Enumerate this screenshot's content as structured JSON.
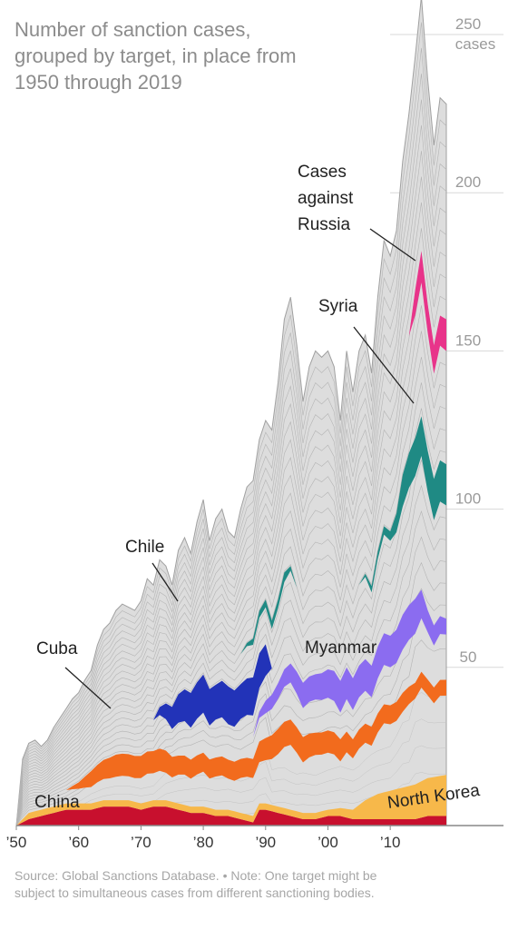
{
  "title": "Number of sanction cases, grouped by target, in place from 1950 through 2019",
  "source": "Source: Global Sanctions Database. • Note: One target might be subject to simultaneous cases from different sanctioning bodies.",
  "chart_data": {
    "type": "area",
    "stacked": true,
    "title": "Number of sanction cases, grouped by target, in place from 1950 through 2019",
    "xlabel": "",
    "ylabel": "cases",
    "xlim": [
      1950,
      2019
    ],
    "ylim": [
      0,
      250
    ],
    "y_ticks": [
      {
        "value": 50,
        "label": "50"
      },
      {
        "value": 100,
        "label": "100"
      },
      {
        "value": 150,
        "label": "150"
      },
      {
        "value": 200,
        "label": "200"
      },
      {
        "value": 250,
        "label": "250"
      }
    ],
    "y_unit_label": "cases",
    "x_ticks": [
      {
        "value": 1950,
        "label": "’50"
      },
      {
        "value": 1960,
        "label": "’60"
      },
      {
        "value": 1970,
        "label": "’70"
      },
      {
        "value": 1980,
        "label": "’80"
      },
      {
        "value": 1990,
        "label": "’90"
      },
      {
        "value": 2000,
        "label": "’00"
      },
      {
        "value": 2010,
        "label": "’10"
      }
    ],
    "grid": false,
    "colors": {
      "china": "#c8102e",
      "north_korea": "#f7b84a",
      "cuba": "#f26b1d",
      "myanmar": "#8b6cf0",
      "chile": "#2233b8",
      "syria": "#1f8a84",
      "russia": "#e8348a",
      "other": "#dddddd",
      "other_stroke": "#a0a0a0"
    },
    "totals": [
      {
        "x": 1950,
        "y": 0
      },
      {
        "x": 1951,
        "y": 21
      },
      {
        "x": 1952,
        "y": 26
      },
      {
        "x": 1953,
        "y": 27
      },
      {
        "x": 1954,
        "y": 25
      },
      {
        "x": 1955,
        "y": 27
      },
      {
        "x": 1956,
        "y": 31
      },
      {
        "x": 1957,
        "y": 34
      },
      {
        "x": 1958,
        "y": 37
      },
      {
        "x": 1959,
        "y": 40
      },
      {
        "x": 1960,
        "y": 42
      },
      {
        "x": 1961,
        "y": 46
      },
      {
        "x": 1962,
        "y": 49
      },
      {
        "x": 1963,
        "y": 57
      },
      {
        "x": 1964,
        "y": 62
      },
      {
        "x": 1965,
        "y": 64
      },
      {
        "x": 1966,
        "y": 68
      },
      {
        "x": 1967,
        "y": 70
      },
      {
        "x": 1968,
        "y": 69
      },
      {
        "x": 1969,
        "y": 68
      },
      {
        "x": 1970,
        "y": 71
      },
      {
        "x": 1971,
        "y": 78
      },
      {
        "x": 1972,
        "y": 76
      },
      {
        "x": 1973,
        "y": 84
      },
      {
        "x": 1974,
        "y": 82
      },
      {
        "x": 1975,
        "y": 76
      },
      {
        "x": 1976,
        "y": 87
      },
      {
        "x": 1977,
        "y": 91
      },
      {
        "x": 1978,
        "y": 86
      },
      {
        "x": 1979,
        "y": 96
      },
      {
        "x": 1980,
        "y": 103
      },
      {
        "x": 1981,
        "y": 90
      },
      {
        "x": 1982,
        "y": 97
      },
      {
        "x": 1983,
        "y": 100
      },
      {
        "x": 1984,
        "y": 93
      },
      {
        "x": 1985,
        "y": 91
      },
      {
        "x": 1986,
        "y": 100
      },
      {
        "x": 1987,
        "y": 107
      },
      {
        "x": 1988,
        "y": 109
      },
      {
        "x": 1989,
        "y": 122
      },
      {
        "x": 1990,
        "y": 128
      },
      {
        "x": 1991,
        "y": 125
      },
      {
        "x": 1992,
        "y": 140
      },
      {
        "x": 1993,
        "y": 160
      },
      {
        "x": 1994,
        "y": 167
      },
      {
        "x": 1995,
        "y": 152
      },
      {
        "x": 1996,
        "y": 134
      },
      {
        "x": 1997,
        "y": 145
      },
      {
        "x": 1998,
        "y": 150
      },
      {
        "x": 1999,
        "y": 148
      },
      {
        "x": 2000,
        "y": 150
      },
      {
        "x": 2001,
        "y": 145
      },
      {
        "x": 2002,
        "y": 128
      },
      {
        "x": 2003,
        "y": 150
      },
      {
        "x": 2004,
        "y": 137
      },
      {
        "x": 2005,
        "y": 150
      },
      {
        "x": 2006,
        "y": 155
      },
      {
        "x": 2007,
        "y": 143
      },
      {
        "x": 2008,
        "y": 167
      },
      {
        "x": 2009,
        "y": 185
      },
      {
        "x": 2010,
        "y": 180
      },
      {
        "x": 2011,
        "y": 188
      },
      {
        "x": 2012,
        "y": 210
      },
      {
        "x": 2013,
        "y": 225
      },
      {
        "x": 2014,
        "y": 243
      },
      {
        "x": 2015,
        "y": 262
      },
      {
        "x": 2016,
        "y": 236
      },
      {
        "x": 2017,
        "y": 215
      },
      {
        "x": 2018,
        "y": 230
      },
      {
        "x": 2019,
        "y": 228
      }
    ],
    "series": [
      {
        "name": "China",
        "key": "china",
        "values": [
          {
            "x": 1950,
            "y": 0
          },
          {
            "x": 1952,
            "y": 2
          },
          {
            "x": 1954,
            "y": 3
          },
          {
            "x": 1956,
            "y": 4
          },
          {
            "x": 1958,
            "y": 5
          },
          {
            "x": 1960,
            "y": 5
          },
          {
            "x": 1962,
            "y": 5
          },
          {
            "x": 1964,
            "y": 6
          },
          {
            "x": 1966,
            "y": 6
          },
          {
            "x": 1968,
            "y": 6
          },
          {
            "x": 1970,
            "y": 5
          },
          {
            "x": 1972,
            "y": 6
          },
          {
            "x": 1974,
            "y": 6
          },
          {
            "x": 1976,
            "y": 5
          },
          {
            "x": 1978,
            "y": 4
          },
          {
            "x": 1980,
            "y": 4
          },
          {
            "x": 1982,
            "y": 3
          },
          {
            "x": 1984,
            "y": 3
          },
          {
            "x": 1986,
            "y": 2
          },
          {
            "x": 1988,
            "y": 1
          },
          {
            "x": 1989,
            "y": 5
          },
          {
            "x": 1990,
            "y": 5
          },
          {
            "x": 1992,
            "y": 4
          },
          {
            "x": 1994,
            "y": 3
          },
          {
            "x": 1996,
            "y": 2
          },
          {
            "x": 1998,
            "y": 2
          },
          {
            "x": 2000,
            "y": 3
          },
          {
            "x": 2002,
            "y": 3
          },
          {
            "x": 2004,
            "y": 2
          },
          {
            "x": 2006,
            "y": 2
          },
          {
            "x": 2008,
            "y": 2
          },
          {
            "x": 2010,
            "y": 2
          },
          {
            "x": 2012,
            "y": 2
          },
          {
            "x": 2014,
            "y": 2
          },
          {
            "x": 2016,
            "y": 3
          },
          {
            "x": 2019,
            "y": 3
          }
        ]
      },
      {
        "name": "North Korea",
        "key": "north_korea",
        "values": [
          {
            "x": 1950,
            "y": 0
          },
          {
            "x": 1952,
            "y": 2
          },
          {
            "x": 1956,
            "y": 2
          },
          {
            "x": 1960,
            "y": 2
          },
          {
            "x": 1965,
            "y": 2
          },
          {
            "x": 1970,
            "y": 2
          },
          {
            "x": 1975,
            "y": 2
          },
          {
            "x": 1980,
            "y": 2
          },
          {
            "x": 1985,
            "y": 2
          },
          {
            "x": 1990,
            "y": 2
          },
          {
            "x": 1995,
            "y": 2
          },
          {
            "x": 2000,
            "y": 2
          },
          {
            "x": 2004,
            "y": 3
          },
          {
            "x": 2006,
            "y": 6
          },
          {
            "x": 2008,
            "y": 8
          },
          {
            "x": 2010,
            "y": 9
          },
          {
            "x": 2012,
            "y": 10
          },
          {
            "x": 2014,
            "y": 11
          },
          {
            "x": 2016,
            "y": 12
          },
          {
            "x": 2019,
            "y": 13
          }
        ]
      },
      {
        "name": "Cuba",
        "key": "cuba",
        "values": [
          {
            "x": 1950,
            "y": 0
          },
          {
            "x": 1958,
            "y": 0
          },
          {
            "x": 1960,
            "y": 2
          },
          {
            "x": 1962,
            "y": 5
          },
          {
            "x": 1964,
            "y": 6
          },
          {
            "x": 1966,
            "y": 7
          },
          {
            "x": 1968,
            "y": 7
          },
          {
            "x": 1970,
            "y": 7
          },
          {
            "x": 1972,
            "y": 7
          },
          {
            "x": 1974,
            "y": 7
          },
          {
            "x": 1976,
            "y": 6
          },
          {
            "x": 1978,
            "y": 6
          },
          {
            "x": 1980,
            "y": 6
          },
          {
            "x": 1982,
            "y": 6
          },
          {
            "x": 1984,
            "y": 6
          },
          {
            "x": 1986,
            "y": 6
          },
          {
            "x": 1988,
            "y": 6
          },
          {
            "x": 1990,
            "y": 7
          },
          {
            "x": 1992,
            "y": 8
          },
          {
            "x": 1994,
            "y": 8
          },
          {
            "x": 1996,
            "y": 8
          },
          {
            "x": 1998,
            "y": 7
          },
          {
            "x": 2000,
            "y": 7
          },
          {
            "x": 2002,
            "y": 7
          },
          {
            "x": 2004,
            "y": 6
          },
          {
            "x": 2006,
            "y": 6
          },
          {
            "x": 2008,
            "y": 6
          },
          {
            "x": 2010,
            "y": 6
          },
          {
            "x": 2012,
            "y": 6
          },
          {
            "x": 2014,
            "y": 5
          },
          {
            "x": 2016,
            "y": 5
          },
          {
            "x": 2019,
            "y": 5
          }
        ]
      },
      {
        "name": "Myanmar",
        "key": "myanmar",
        "values": [
          {
            "x": 1950,
            "y": 0
          },
          {
            "x": 1988,
            "y": 0
          },
          {
            "x": 1990,
            "y": 4
          },
          {
            "x": 1992,
            "y": 5
          },
          {
            "x": 1994,
            "y": 6
          },
          {
            "x": 1996,
            "y": 8
          },
          {
            "x": 1998,
            "y": 8
          },
          {
            "x": 2000,
            "y": 9
          },
          {
            "x": 2002,
            "y": 10
          },
          {
            "x": 2004,
            "y": 10
          },
          {
            "x": 2006,
            "y": 10
          },
          {
            "x": 2008,
            "y": 10
          },
          {
            "x": 2010,
            "y": 10
          },
          {
            "x": 2012,
            "y": 11
          },
          {
            "x": 2014,
            "y": 11
          },
          {
            "x": 2016,
            "y": 7
          },
          {
            "x": 2019,
            "y": 5
          }
        ]
      },
      {
        "name": "Chile",
        "key": "chile",
        "values": [
          {
            "x": 1950,
            "y": 0
          },
          {
            "x": 1972,
            "y": 0
          },
          {
            "x": 1974,
            "y": 5
          },
          {
            "x": 1976,
            "y": 9
          },
          {
            "x": 1978,
            "y": 11
          },
          {
            "x": 1980,
            "y": 12
          },
          {
            "x": 1982,
            "y": 11
          },
          {
            "x": 1984,
            "y": 12
          },
          {
            "x": 1986,
            "y": 11
          },
          {
            "x": 1988,
            "y": 12
          },
          {
            "x": 1990,
            "y": 10
          },
          {
            "x": 1991,
            "y": 0
          },
          {
            "x": 2019,
            "y": 0
          }
        ]
      },
      {
        "name": "Syria",
        "key": "syria",
        "values": [
          {
            "x": 1950,
            "y": 0
          },
          {
            "x": 1986,
            "y": 0
          },
          {
            "x": 1988,
            "y": 2
          },
          {
            "x": 1993,
            "y": 3
          },
          {
            "x": 1995,
            "y": 0
          },
          {
            "x": 2005,
            "y": 0
          },
          {
            "x": 2007,
            "y": 2
          },
          {
            "x": 2010,
            "y": 3
          },
          {
            "x": 2011,
            "y": 6
          },
          {
            "x": 2012,
            "y": 10
          },
          {
            "x": 2014,
            "y": 12
          },
          {
            "x": 2016,
            "y": 13
          },
          {
            "x": 2019,
            "y": 13
          }
        ]
      },
      {
        "name": "Russia",
        "key": "russia",
        "values": [
          {
            "x": 1950,
            "y": 0
          },
          {
            "x": 2013,
            "y": 0
          },
          {
            "x": 2014,
            "y": 8
          },
          {
            "x": 2015,
            "y": 10
          },
          {
            "x": 2016,
            "y": 9
          },
          {
            "x": 2017,
            "y": 9
          },
          {
            "x": 2019,
            "y": 10
          }
        ]
      }
    ],
    "annotations": [
      {
        "id": "china",
        "text": "China",
        "color": "#ffffff"
      },
      {
        "id": "north-korea",
        "text": "North Korea",
        "color": "#222222"
      },
      {
        "id": "cuba",
        "text": "Cuba",
        "color": "#222222"
      },
      {
        "id": "chile",
        "text": "Chile",
        "color": "#222222"
      },
      {
        "id": "myanmar",
        "text": "Myanmar",
        "color": "#222222"
      },
      {
        "id": "syria",
        "text": "Syria",
        "color": "#222222"
      },
      {
        "id": "russia",
        "lines": [
          "Cases",
          "against",
          "Russia"
        ],
        "color": "#222222"
      }
    ]
  }
}
